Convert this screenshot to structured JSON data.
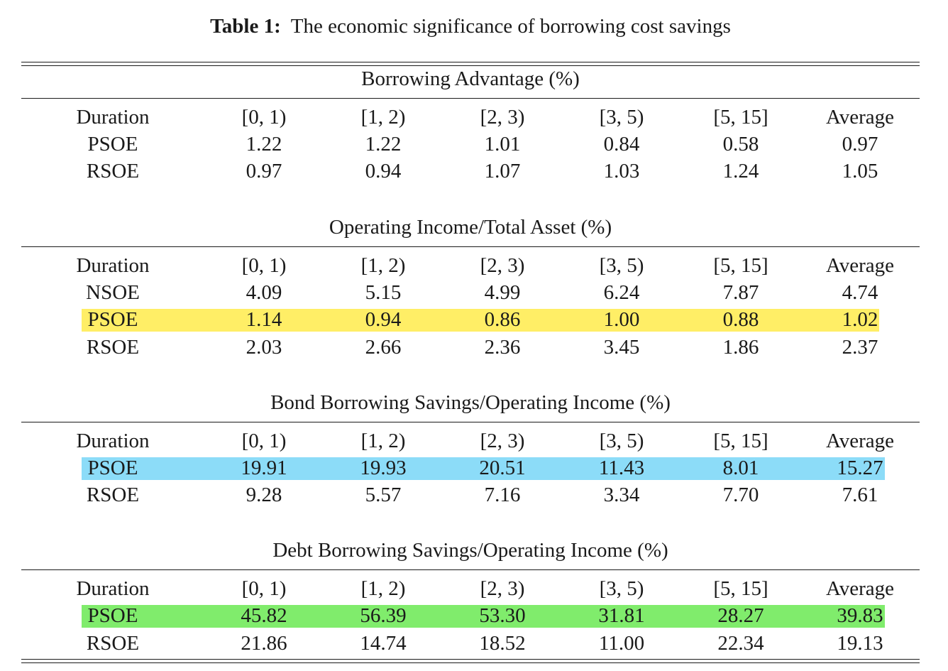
{
  "caption": {
    "label": "Table 1:",
    "text": "The economic significance of borrowing cost savings"
  },
  "colors": {
    "highlight_yellow": "#ffee66",
    "highlight_blue": "#8cdcf8",
    "highlight_green": "#80ec6c"
  },
  "panels": [
    {
      "title": "Borrowing Advantage (%)",
      "header": [
        "Duration",
        "[0, 1)",
        "[1, 2)",
        "[2, 3)",
        "[3, 5)",
        "[5, 15]",
        "Average"
      ],
      "rows": [
        {
          "label": "PSOE",
          "values": [
            "1.22",
            "1.22",
            "1.01",
            "0.84",
            "0.58",
            "0.97"
          ],
          "highlight": ""
        },
        {
          "label": "RSOE",
          "values": [
            "0.97",
            "0.94",
            "1.07",
            "1.03",
            "1.24",
            "1.05"
          ],
          "highlight": ""
        }
      ]
    },
    {
      "title": "Operating Income/Total Asset (%)",
      "header": [
        "Duration",
        "[0, 1)",
        "[1, 2)",
        "[2, 3)",
        "[3, 5)",
        "[5, 15]",
        "Average"
      ],
      "rows": [
        {
          "label": "NSOE",
          "values": [
            "4.09",
            "5.15",
            "4.99",
            "6.24",
            "7.87",
            "4.74"
          ],
          "highlight": ""
        },
        {
          "label": "PSOE",
          "values": [
            "1.14",
            "0.94",
            "0.86",
            "1.00",
            "0.88",
            "1.02"
          ],
          "highlight": "yellow"
        },
        {
          "label": "RSOE",
          "values": [
            "2.03",
            "2.66",
            "2.36",
            "3.45",
            "1.86",
            "2.37"
          ],
          "highlight": ""
        }
      ]
    },
    {
      "title": "Bond Borrowing Savings/Operating Income (%)",
      "header": [
        "Duration",
        "[0, 1)",
        "[1, 2)",
        "[2, 3)",
        "[3, 5)",
        "[5, 15]",
        "Average"
      ],
      "rows": [
        {
          "label": "PSOE",
          "values": [
            "19.91",
            "19.93",
            "20.51",
            "11.43",
            "8.01",
            "15.27"
          ],
          "highlight": "blue"
        },
        {
          "label": "RSOE",
          "values": [
            "9.28",
            "5.57",
            "7.16",
            "3.34",
            "7.70",
            "7.61"
          ],
          "highlight": ""
        }
      ]
    },
    {
      "title": "Debt Borrowing Savings/Operating Income (%)",
      "header": [
        "Duration",
        "[0, 1)",
        "[1, 2)",
        "[2, 3)",
        "[3, 5)",
        "[5, 15]",
        "Average"
      ],
      "rows": [
        {
          "label": "PSOE",
          "values": [
            "45.82",
            "56.39",
            "53.30",
            "31.81",
            "28.27",
            "39.83"
          ],
          "highlight": "green"
        },
        {
          "label": "RSOE",
          "values": [
            "21.86",
            "14.74",
            "18.52",
            "11.00",
            "22.34",
            "19.13"
          ],
          "highlight": ""
        }
      ]
    }
  ]
}
